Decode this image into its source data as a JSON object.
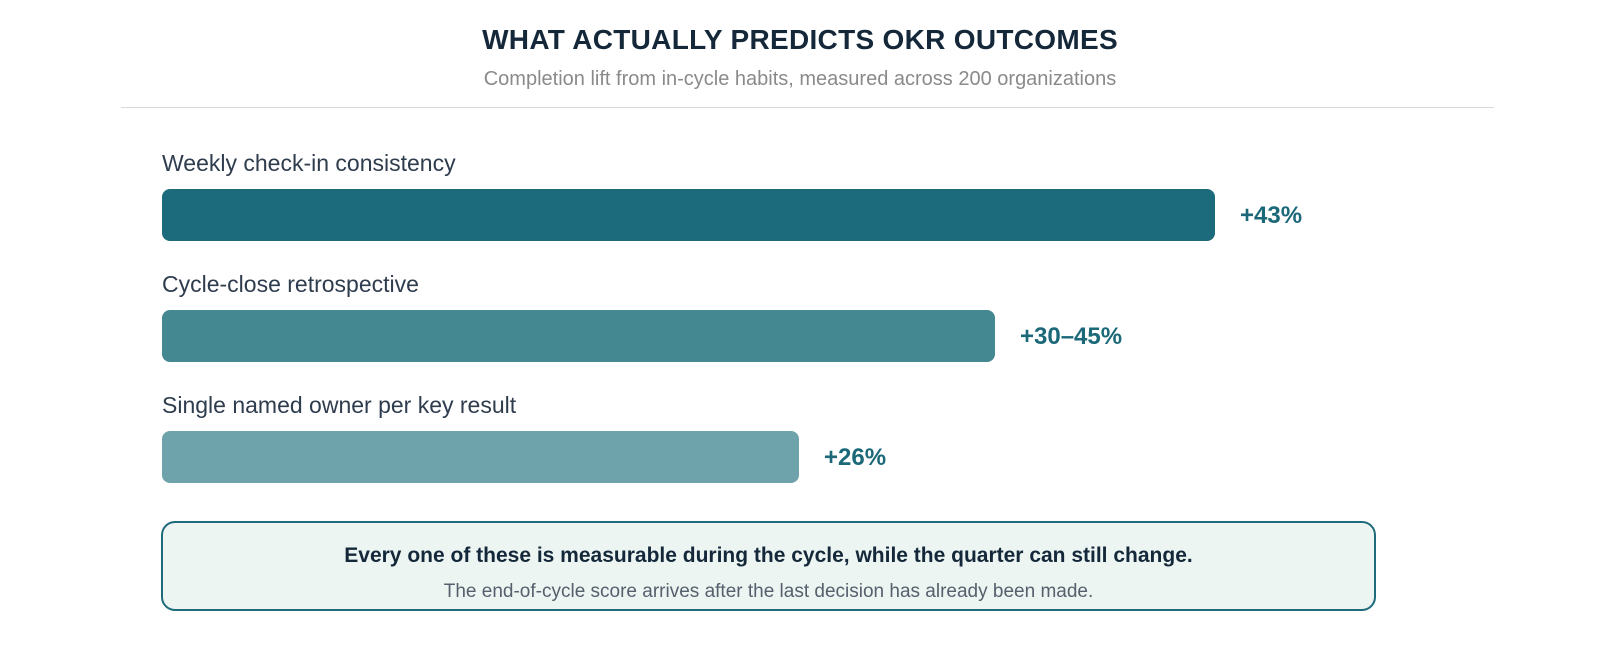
{
  "header": {
    "title": "WHAT ACTUALLY PREDICTS OKR OUTCOMES",
    "subtitle": "Completion lift from in-cycle habits, measured across 200 organizations"
  },
  "chart_data": {
    "type": "bar",
    "orientation": "horizontal",
    "title": "WHAT ACTUALLY PREDICTS OKR OUTCOMES",
    "subtitle": "Completion lift from in-cycle habits, measured across 200 organizations",
    "categories": [
      "Weekly check-in consistency",
      "Cycle-close retrospective",
      "Single named owner per key result"
    ],
    "values": [
      43,
      34,
      26
    ],
    "value_labels": [
      "+43%",
      "+30–45%",
      "+26%"
    ],
    "unit": "%",
    "xlim": [
      0,
      43
    ],
    "grid": false,
    "colors": [
      "#1b6b7c",
      "#448891",
      "#6fa3ac"
    ]
  },
  "callout": {
    "main": "Every one of these is measurable during the cycle, while the quarter can still change.",
    "sub": "The end-of-cycle score arrives after the last decision has already been made."
  }
}
